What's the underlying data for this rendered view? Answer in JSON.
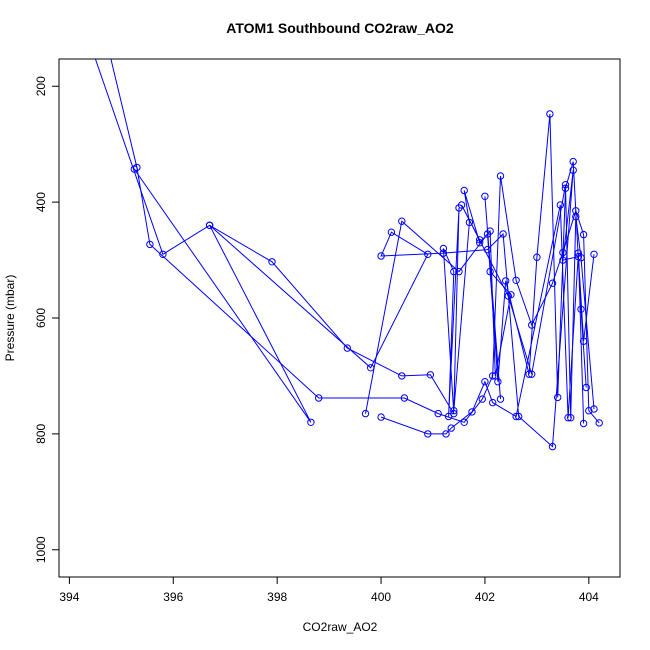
{
  "chart_data": {
    "type": "line",
    "title": "ATOM1 Southbound CO2raw_AO2",
    "xlabel": "CO2raw_AO2",
    "ylabel": "Pressure (mbar)",
    "xlim": [
      393.8,
      404.6
    ],
    "ylim": [
      1047,
      153
    ],
    "y_inverted": true,
    "x_ticks": [
      394,
      396,
      398,
      400,
      402,
      404
    ],
    "y_ticks": [
      200,
      400,
      600,
      800,
      1000
    ],
    "grid": false,
    "legend": "none",
    "markers": "open-circle",
    "color": "#0000ff",
    "series": [
      {
        "x": [
          394.5,
          395.8,
          396.7,
          397.9,
          399.35,
          400.4,
          400.95,
          401.4,
          401.2,
          401.4,
          401.3,
          401.5,
          401.4,
          401.7,
          401.6,
          401.9,
          402.1,
          402.2,
          402.5,
          402.1,
          402.3,
          402.0
        ],
        "y": [
          153,
          490,
          440,
          503,
          652,
          700,
          698,
          765,
          480,
          520,
          770,
          410,
          760,
          435,
          380,
          470,
          450,
          700,
          560,
          520,
          740,
          390
        ]
      },
      {
        "x": [
          394.8,
          395.3,
          395.55,
          398.8,
          400.45,
          401.1,
          401.6,
          401.95,
          402.15,
          402.3,
          402.6,
          402.9,
          403.3,
          403.5,
          403.75,
          403.9,
          404.0,
          404.2
        ],
        "y": [
          153,
          340,
          473,
          738,
          738,
          765,
          780,
          740,
          700,
          355,
          535,
          612,
          540,
          487,
          415,
          456,
          760,
          781
        ]
      },
      {
        "x": [
          395.25,
          398.65,
          396.7,
          399.8,
          400.9,
          400.2,
          400.0,
          401.2,
          402.05,
          402.35,
          402.65,
          403.3,
          403.7,
          403.5,
          403.8,
          403.9,
          404.1
        ],
        "y": [
          343,
          780,
          440,
          686,
          490,
          452,
          493,
          488,
          482,
          455,
          770,
          822,
          345,
          500,
          494,
          640,
          490
        ]
      },
      {
        "x": [
          399.7,
          400.4,
          401.5,
          402.05,
          402.25,
          402.4,
          402.85,
          403.0,
          403.25,
          403.4,
          403.55,
          403.7,
          403.85,
          403.95
        ],
        "y": [
          765,
          433,
          520,
          455,
          710,
          536,
          697,
          495,
          248,
          737,
          376,
          330,
          585,
          720
        ]
      },
      {
        "x": [
          400.0,
          400.9,
          401.25,
          401.35,
          401.75,
          402.0,
          402.15,
          402.6,
          403.45,
          403.6,
          403.8,
          403.9
        ],
        "y": [
          771,
          800,
          800,
          790,
          762,
          710,
          746,
          770,
          405,
          772,
          488,
          782
        ]
      },
      {
        "x": [
          401.9,
          401.55,
          402.45,
          402.9,
          403.55,
          403.65,
          403.75,
          403.85,
          404.1
        ],
        "y": [
          465,
          405,
          562,
          697,
          370,
          772,
          425,
          496,
          757
        ]
      }
    ]
  }
}
